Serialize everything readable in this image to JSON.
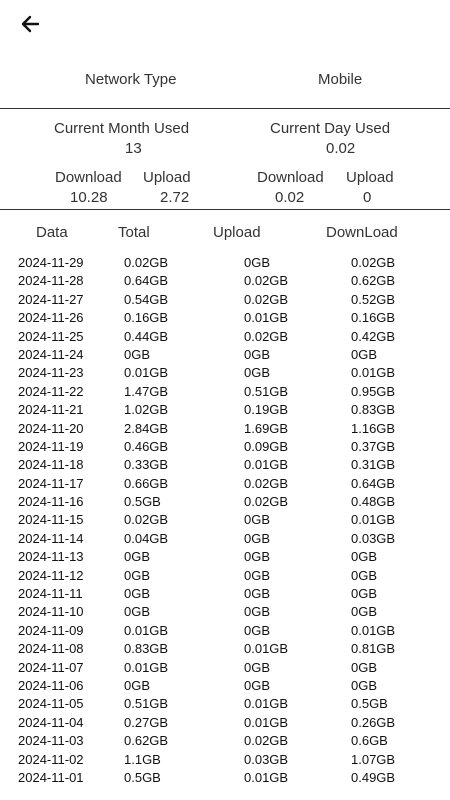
{
  "header": {
    "back_icon": "arrow-left-icon"
  },
  "network": {
    "label": "Network Type",
    "value": "Mobile"
  },
  "month": {
    "title": "Current Month Used",
    "total": "13",
    "download_label": "Download",
    "download_value": "10.28",
    "upload_label": "Upload",
    "upload_value": "2.72"
  },
  "day": {
    "title": "Current Day Used",
    "total": "0.02",
    "download_label": "Download",
    "download_value": "0.02",
    "upload_label": "Upload",
    "upload_value": "0"
  },
  "table": {
    "headers": {
      "date": "Data",
      "total": "Total",
      "upload": "Upload",
      "download": "DownLoad"
    },
    "rows": [
      {
        "date": "2024-11-29",
        "total": "0.02GB",
        "upload": "0GB",
        "download": "0.02GB"
      },
      {
        "date": "2024-11-28",
        "total": "0.64GB",
        "upload": "0.02GB",
        "download": "0.62GB"
      },
      {
        "date": "2024-11-27",
        "total": "0.54GB",
        "upload": "0.02GB",
        "download": "0.52GB"
      },
      {
        "date": "2024-11-26",
        "total": "0.16GB",
        "upload": "0.01GB",
        "download": "0.16GB"
      },
      {
        "date": "2024-11-25",
        "total": "0.44GB",
        "upload": "0.02GB",
        "download": "0.42GB"
      },
      {
        "date": "2024-11-24",
        "total": "0GB",
        "upload": "0GB",
        "download": "0GB"
      },
      {
        "date": "2024-11-23",
        "total": "0.01GB",
        "upload": "0GB",
        "download": "0.01GB"
      },
      {
        "date": "2024-11-22",
        "total": "1.47GB",
        "upload": "0.51GB",
        "download": "0.95GB"
      },
      {
        "date": "2024-11-21",
        "total": "1.02GB",
        "upload": "0.19GB",
        "download": "0.83GB"
      },
      {
        "date": "2024-11-20",
        "total": "2.84GB",
        "upload": "1.69GB",
        "download": "1.16GB"
      },
      {
        "date": "2024-11-19",
        "total": "0.46GB",
        "upload": "0.09GB",
        "download": "0.37GB"
      },
      {
        "date": "2024-11-18",
        "total": "0.33GB",
        "upload": "0.01GB",
        "download": "0.31GB"
      },
      {
        "date": "2024-11-17",
        "total": "0.66GB",
        "upload": "0.02GB",
        "download": "0.64GB"
      },
      {
        "date": "2024-11-16",
        "total": "0.5GB",
        "upload": "0.02GB",
        "download": "0.48GB"
      },
      {
        "date": "2024-11-15",
        "total": "0.02GB",
        "upload": "0GB",
        "download": "0.01GB"
      },
      {
        "date": "2024-11-14",
        "total": "0.04GB",
        "upload": "0GB",
        "download": "0.03GB"
      },
      {
        "date": "2024-11-13",
        "total": "0GB",
        "upload": "0GB",
        "download": "0GB"
      },
      {
        "date": "2024-11-12",
        "total": "0GB",
        "upload": "0GB",
        "download": "0GB"
      },
      {
        "date": "2024-11-11",
        "total": "0GB",
        "upload": "0GB",
        "download": "0GB"
      },
      {
        "date": "2024-11-10",
        "total": "0GB",
        "upload": "0GB",
        "download": "0GB"
      },
      {
        "date": "2024-11-09",
        "total": "0.01GB",
        "upload": "0GB",
        "download": "0.01GB"
      },
      {
        "date": "2024-11-08",
        "total": "0.83GB",
        "upload": "0.01GB",
        "download": "0.81GB"
      },
      {
        "date": "2024-11-07",
        "total": "0.01GB",
        "upload": "0GB",
        "download": "0GB"
      },
      {
        "date": "2024-11-06",
        "total": "0GB",
        "upload": "0GB",
        "download": "0GB"
      },
      {
        "date": "2024-11-05",
        "total": "0.51GB",
        "upload": "0.01GB",
        "download": "0.5GB"
      },
      {
        "date": "2024-11-04",
        "total": "0.27GB",
        "upload": "0.01GB",
        "download": "0.26GB"
      },
      {
        "date": "2024-11-03",
        "total": "0.62GB",
        "upload": "0.02GB",
        "download": "0.6GB"
      },
      {
        "date": "2024-11-02",
        "total": "1.1GB",
        "upload": "0.03GB",
        "download": "1.07GB"
      },
      {
        "date": "2024-11-01",
        "total": "0.5GB",
        "upload": "0.01GB",
        "download": "0.49GB"
      }
    ]
  }
}
